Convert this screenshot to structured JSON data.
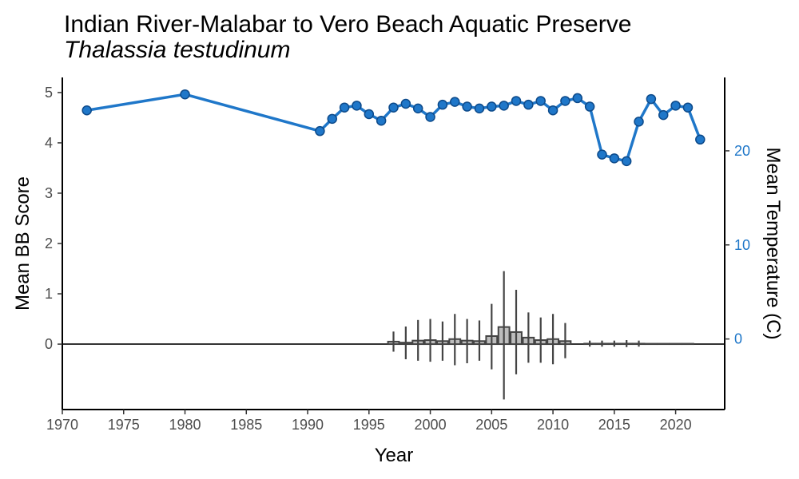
{
  "chart_data": {
    "type": "line",
    "title": "Indian River-Malabar to Vero Beach Aquatic Preserve",
    "subtitle": "Thalassia testudinum",
    "xlabel": "Year",
    "ylabel": "Mean BB Score",
    "y2label": "Mean Temperature (C)",
    "xlim": [
      1970,
      2024
    ],
    "ylim": [
      -1.3,
      5.3
    ],
    "y2lim": [
      -7.5,
      27.8
    ],
    "x_ticks": [
      "1970",
      "1975",
      "1980",
      "1985",
      "1990",
      "1995",
      "2000",
      "2005",
      "2010",
      "2015",
      "2020"
    ],
    "y_ticks": [
      "0",
      "1",
      "2",
      "3",
      "4",
      "5"
    ],
    "y2_ticks": [
      "0",
      "10",
      "20"
    ],
    "grid": false,
    "temperature_color": "#1f77c9",
    "bar_color": "#bdbdbd",
    "temperature": {
      "x": [
        1972,
        1980,
        1991,
        1992,
        1993,
        1994,
        1995,
        1996,
        1997,
        1998,
        1999,
        2000,
        2001,
        2002,
        2003,
        2004,
        2005,
        2006,
        2007,
        2008,
        2009,
        2010,
        2011,
        2012,
        2013,
        2014,
        2015,
        2016,
        2017,
        2018,
        2019,
        2020,
        2021,
        2022
      ],
      "y": [
        24.3,
        26.0,
        22.1,
        23.4,
        24.6,
        24.8,
        23.9,
        23.2,
        24.6,
        25.0,
        24.5,
        23.6,
        24.9,
        25.2,
        24.7,
        24.5,
        24.7,
        24.8,
        25.3,
        24.9,
        25.3,
        24.3,
        25.3,
        25.6,
        24.7,
        19.6,
        19.2,
        18.9,
        23.1,
        25.5,
        23.8,
        24.8,
        24.6,
        21.2
      ]
    },
    "bb_score": {
      "x": [
        1997,
        1998,
        1999,
        2000,
        2001,
        2002,
        2003,
        2004,
        2005,
        2006,
        2007,
        2008,
        2009,
        2010,
        2011,
        2013,
        2014,
        2015,
        2016,
        2017,
        2018,
        2019,
        2020,
        2021
      ],
      "y": [
        0.05,
        0.03,
        0.07,
        0.08,
        0.06,
        0.1,
        0.07,
        0.06,
        0.16,
        0.34,
        0.24,
        0.13,
        0.08,
        0.1,
        0.06,
        0.01,
        0.01,
        0.01,
        0.01,
        0.01,
        0.0,
        0.0,
        0.0,
        0.0
      ],
      "err_low": [
        -0.15,
        -0.3,
        -0.33,
        -0.35,
        -0.33,
        -0.42,
        -0.38,
        -0.33,
        -0.5,
        -1.1,
        -0.6,
        -0.37,
        -0.37,
        -0.4,
        -0.28,
        -0.05,
        -0.05,
        -0.05,
        -0.06,
        -0.05,
        0.0,
        0.0,
        0.0,
        0.0
      ],
      "err_high": [
        0.25,
        0.35,
        0.48,
        0.5,
        0.45,
        0.6,
        0.5,
        0.47,
        0.8,
        1.45,
        1.08,
        0.63,
        0.53,
        0.6,
        0.42,
        0.07,
        0.07,
        0.07,
        0.08,
        0.07,
        0.0,
        0.0,
        0.0,
        0.0
      ]
    }
  }
}
